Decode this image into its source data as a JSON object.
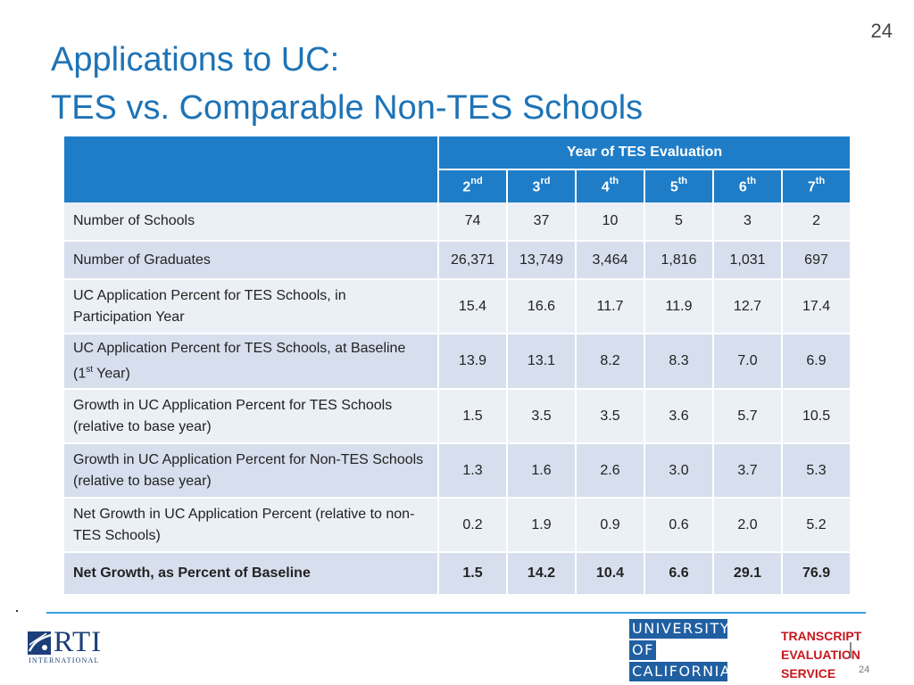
{
  "page_number": "24",
  "title_line1": "Applications to UC:",
  "title_line2": "TES vs. Comparable Non-TES Schools",
  "table": {
    "group_header": "Year of TES Evaluation",
    "years": [
      {
        "num": "2",
        "sup": "nd"
      },
      {
        "num": "3",
        "sup": "rd"
      },
      {
        "num": "4",
        "sup": "th"
      },
      {
        "num": "5",
        "sup": "th"
      },
      {
        "num": "6",
        "sup": "th"
      },
      {
        "num": "7",
        "sup": "th"
      }
    ],
    "rows": [
      {
        "label": "Number of Schools",
        "values": [
          "74",
          "37",
          "10",
          "5",
          "3",
          "2"
        ]
      },
      {
        "label": "Number of Graduates",
        "values": [
          "26,371",
          "13,749",
          "3,464",
          "1,816",
          "1,031",
          "697"
        ]
      },
      {
        "label": "UC Application Percent for TES Schools, in Participation Year",
        "values": [
          "15.4",
          "16.6",
          "11.7",
          "11.9",
          "12.7",
          "17.4"
        ]
      },
      {
        "label_pre": "UC Application Percent for TES Schools, at Baseline (1",
        "label_sup": "st",
        "label_post": " Year)",
        "values": [
          "13.9",
          "13.1",
          "8.2",
          "8.3",
          "7.0",
          "6.9"
        ]
      },
      {
        "label": "Growth in UC Application Percent for TES Schools (relative to base year)",
        "values": [
          "1.5",
          "3.5",
          "3.5",
          "3.6",
          "5.7",
          "10.5"
        ]
      },
      {
        "label": "Growth in UC Application Percent for Non-TES Schools (relative to base year)",
        "values": [
          "1.3",
          "1.6",
          "2.6",
          "3.0",
          "3.7",
          "5.3"
        ]
      },
      {
        "label": "Net Growth in UC Application Percent (relative to non-TES Schools)",
        "values": [
          "0.2",
          "1.9",
          "0.9",
          "0.6",
          "2.0",
          "5.2"
        ]
      },
      {
        "label": "Net Growth, as Percent of Baseline",
        "values": [
          "1.5",
          "14.2",
          "10.4",
          "6.6",
          "29.1",
          "76.9"
        ]
      }
    ]
  },
  "footer": {
    "dot": ".",
    "rti": {
      "name": "RTI",
      "sub": "INTERNATIONAL",
      "icon": "rti-globe-icon"
    },
    "uc": [
      "UNIVERSITY",
      "OF",
      "CALIFORNIA"
    ],
    "tes": [
      "TRANSCRIPT",
      "EVALUATION",
      "SERVICE"
    ],
    "small_page": "24"
  },
  "colors": {
    "title": "#1d73b6",
    "header_bg": "#1f7dc8",
    "row_light": "#ebeff6",
    "row_dark": "#d7dfee",
    "rule": "#3aa0dc",
    "uc_blue": "#1f5fa2",
    "tes_red": "#c8161d",
    "rti_navy": "#1c3f7a"
  }
}
